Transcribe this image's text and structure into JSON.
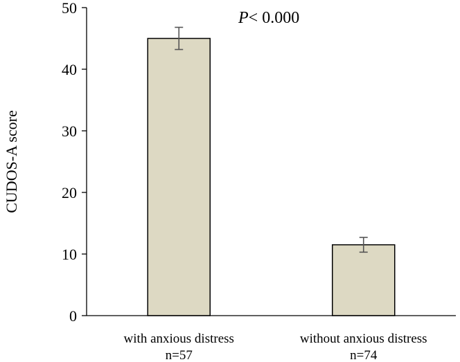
{
  "chart_data": {
    "type": "bar",
    "categories": [
      "with anxious distress",
      "without anxious distress"
    ],
    "sample_sizes": [
      "n=57",
      "n=74"
    ],
    "values": [
      45.0,
      11.5
    ],
    "error": [
      1.8,
      1.2
    ],
    "ylabel": "CUDOS-A score",
    "xlabel": "",
    "ylim": [
      0,
      50
    ],
    "yticks": [
      0,
      10,
      20,
      30,
      40,
      50
    ],
    "annotation": {
      "italic": "P",
      "rest": "< 0.000"
    },
    "grid": false,
    "legend": "none",
    "colors": {
      "bar_fill": "#ddd9c3",
      "bar_stroke": "#000000",
      "error_bar": "#555555"
    }
  }
}
